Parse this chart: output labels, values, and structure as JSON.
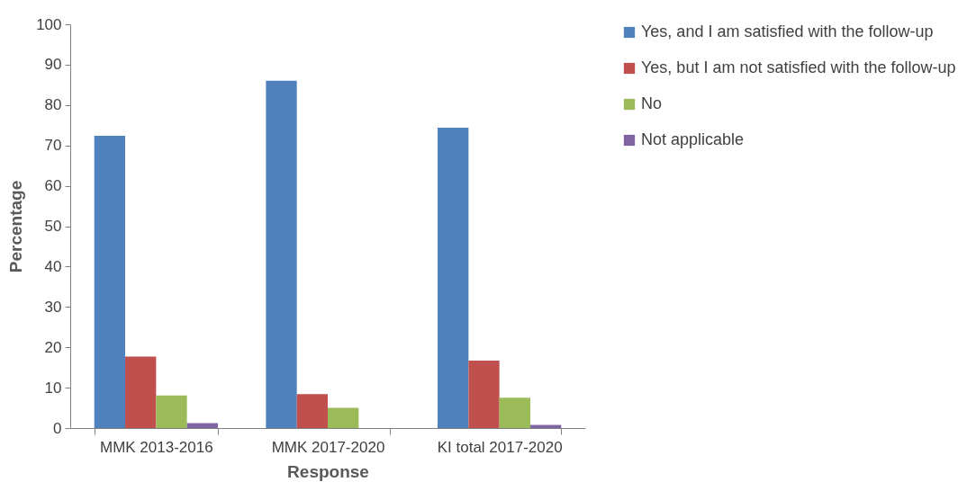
{
  "chart_data": {
    "type": "bar",
    "xlabel": "Response",
    "ylabel": "Percentage",
    "categories": [
      "MMK 2013-2016",
      "MMK 2017-2020",
      "KI total 2017-2020"
    ],
    "series": [
      {
        "name": "Yes, and I am satisfied with the follow-up",
        "color": "#4f81bd",
        "values": [
          72.4,
          86.0,
          74.4
        ]
      },
      {
        "name": "Yes, but I am not satisfied with the follow-up",
        "color": "#c0504d",
        "values": [
          17.7,
          8.4,
          16.7
        ]
      },
      {
        "name": "No",
        "color": "#9bbb59",
        "values": [
          8.1,
          5.0,
          7.5
        ]
      },
      {
        "name": "Not applicable",
        "color": "#8064a2",
        "values": [
          1.2,
          0,
          0.8
        ]
      }
    ],
    "ylim": [
      0,
      100
    ],
    "yticks": [
      0,
      10,
      20,
      30,
      40,
      50,
      60,
      70,
      80,
      90,
      100
    ],
    "grid": false,
    "legend": "right"
  }
}
